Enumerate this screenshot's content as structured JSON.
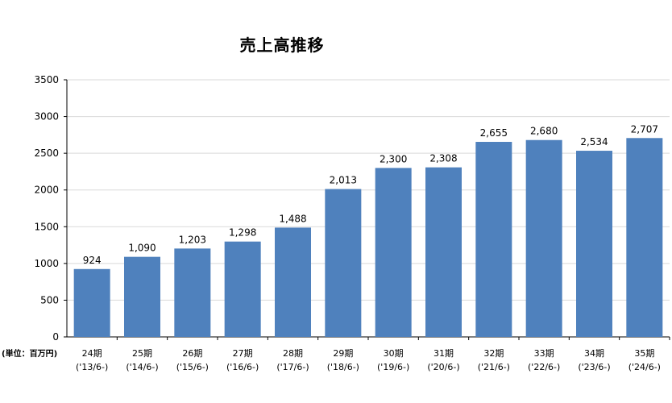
{
  "chart_data": {
    "type": "bar",
    "title": "売上高推移",
    "unit_label": "(単位：百万円)",
    "categories": [
      {
        "period": "24期",
        "date": "('13/6-)"
      },
      {
        "period": "25期",
        "date": "('14/6-)"
      },
      {
        "period": "26期",
        "date": "('15/6-)"
      },
      {
        "period": "27期",
        "date": "('16/6-)"
      },
      {
        "period": "28期",
        "date": "('17/6-)"
      },
      {
        "period": "29期",
        "date": "('18/6-)"
      },
      {
        "period": "30期",
        "date": "('19/6-)"
      },
      {
        "period": "31期",
        "date": "('20/6-)"
      },
      {
        "period": "32期",
        "date": "('21/6-)"
      },
      {
        "period": "33期",
        "date": "('22/6-)"
      },
      {
        "period": "34期",
        "date": "('23/6-)"
      },
      {
        "period": "35期",
        "date": "('24/6-)"
      }
    ],
    "values": [
      924,
      1090,
      1203,
      1298,
      1488,
      2013,
      2300,
      2308,
      2655,
      2680,
      2534,
      2707
    ],
    "value_labels": [
      "924",
      "1,090",
      "1,203",
      "1,298",
      "1,488",
      "2,013",
      "2,300",
      "2,308",
      "2,655",
      "2,680",
      "2,534",
      "2,707"
    ],
    "ylim": [
      0,
      3500
    ],
    "yticks": [
      0,
      500,
      1000,
      1500,
      2000,
      2500,
      3000,
      3500
    ],
    "grid": true,
    "bar_color": "#4f81bd",
    "grid_color": "#d9d9d9"
  }
}
